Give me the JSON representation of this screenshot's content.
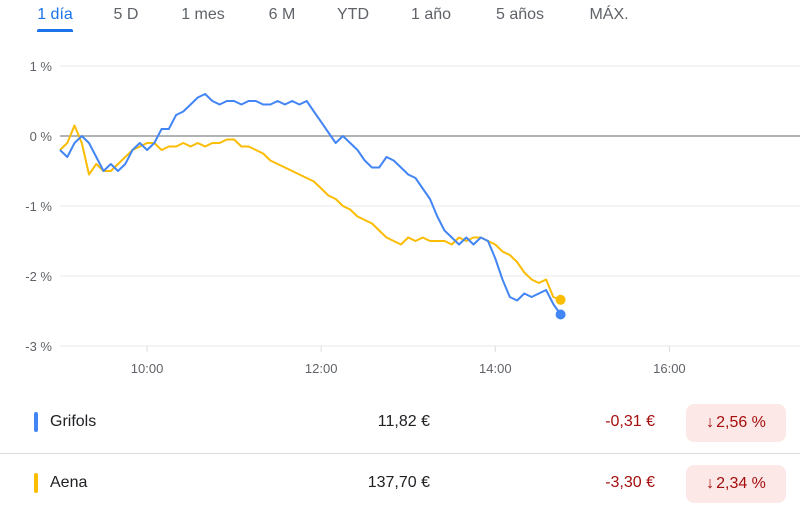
{
  "tabs": [
    {
      "label": "1 día",
      "active": true
    },
    {
      "label": "5 D",
      "active": false
    },
    {
      "label": "1 mes",
      "active": false
    },
    {
      "label": "6 M",
      "active": false
    },
    {
      "label": "YTD",
      "active": false
    },
    {
      "label": "1 año",
      "active": false
    },
    {
      "label": "5 años",
      "active": false
    },
    {
      "label": "MÁX.",
      "active": false
    }
  ],
  "colors": {
    "accent": "#1a73e8",
    "negative": "#a50e0e",
    "negative_bg": "#fce8e6",
    "grifols": "#4285f4",
    "aena": "#fbbc04"
  },
  "chart_data": {
    "type": "line",
    "x_axis": {
      "ticks": [
        "10:00",
        "12:00",
        "14:00",
        "16:00"
      ],
      "range": [
        "9:00",
        "17:30"
      ]
    },
    "y_axis": {
      "ticks": [
        "1 %",
        "0 %",
        "-1 %",
        "-2 %",
        "-3 %"
      ],
      "range": [
        -3,
        1
      ],
      "unit": "%"
    },
    "grid": true,
    "series": [
      {
        "name": "Grifols",
        "color": "#4285f4",
        "points": [
          [
            "9:00",
            -0.2
          ],
          [
            "9:05",
            -0.3
          ],
          [
            "9:10",
            -0.1
          ],
          [
            "9:15",
            0.0
          ],
          [
            "9:20",
            -0.1
          ],
          [
            "9:25",
            -0.3
          ],
          [
            "9:30",
            -0.5
          ],
          [
            "9:35",
            -0.4
          ],
          [
            "9:40",
            -0.5
          ],
          [
            "9:45",
            -0.4
          ],
          [
            "9:50",
            -0.2
          ],
          [
            "9:55",
            -0.1
          ],
          [
            "10:00",
            -0.2
          ],
          [
            "10:05",
            -0.1
          ],
          [
            "10:10",
            0.1
          ],
          [
            "10:15",
            0.1
          ],
          [
            "10:20",
            0.3
          ],
          [
            "10:25",
            0.35
          ],
          [
            "10:30",
            0.45
          ],
          [
            "10:35",
            0.55
          ],
          [
            "10:40",
            0.6
          ],
          [
            "10:45",
            0.5
          ],
          [
            "10:50",
            0.45
          ],
          [
            "10:55",
            0.5
          ],
          [
            "11:00",
            0.5
          ],
          [
            "11:05",
            0.45
          ],
          [
            "11:10",
            0.5
          ],
          [
            "11:15",
            0.5
          ],
          [
            "11:20",
            0.45
          ],
          [
            "11:25",
            0.45
          ],
          [
            "11:30",
            0.5
          ],
          [
            "11:35",
            0.45
          ],
          [
            "11:40",
            0.5
          ],
          [
            "11:45",
            0.45
          ],
          [
            "11:50",
            0.5
          ],
          [
            "11:55",
            0.35
          ],
          [
            "12:00",
            0.2
          ],
          [
            "12:05",
            0.05
          ],
          [
            "12:10",
            -0.1
          ],
          [
            "12:15",
            0.0
          ],
          [
            "12:20",
            -0.1
          ],
          [
            "12:25",
            -0.2
          ],
          [
            "12:30",
            -0.35
          ],
          [
            "12:35",
            -0.45
          ],
          [
            "12:40",
            -0.45
          ],
          [
            "12:45",
            -0.3
          ],
          [
            "12:50",
            -0.35
          ],
          [
            "12:55",
            -0.45
          ],
          [
            "13:00",
            -0.55
          ],
          [
            "13:05",
            -0.6
          ],
          [
            "13:10",
            -0.75
          ],
          [
            "13:15",
            -0.9
          ],
          [
            "13:20",
            -1.15
          ],
          [
            "13:25",
            -1.35
          ],
          [
            "13:30",
            -1.45
          ],
          [
            "13:35",
            -1.55
          ],
          [
            "13:40",
            -1.45
          ],
          [
            "13:45",
            -1.55
          ],
          [
            "13:50",
            -1.45
          ],
          [
            "13:55",
            -1.5
          ],
          [
            "14:00",
            -1.75
          ],
          [
            "14:05",
            -2.05
          ],
          [
            "14:10",
            -2.3
          ],
          [
            "14:15",
            -2.35
          ],
          [
            "14:20",
            -2.25
          ],
          [
            "14:25",
            -2.3
          ],
          [
            "14:30",
            -2.25
          ],
          [
            "14:35",
            -2.2
          ],
          [
            "14:40",
            -2.4
          ],
          [
            "14:45",
            -2.55
          ]
        ]
      },
      {
        "name": "Aena",
        "color": "#fbbc04",
        "points": [
          [
            "9:00",
            -0.2
          ],
          [
            "9:05",
            -0.1
          ],
          [
            "9:10",
            0.15
          ],
          [
            "9:15",
            -0.1
          ],
          [
            "9:20",
            -0.55
          ],
          [
            "9:25",
            -0.4
          ],
          [
            "9:30",
            -0.5
          ],
          [
            "9:35",
            -0.5
          ],
          [
            "9:40",
            -0.4
          ],
          [
            "9:45",
            -0.3
          ],
          [
            "9:50",
            -0.2
          ],
          [
            "9:55",
            -0.15
          ],
          [
            "10:00",
            -0.1
          ],
          [
            "10:05",
            -0.1
          ],
          [
            "10:10",
            -0.2
          ],
          [
            "10:15",
            -0.15
          ],
          [
            "10:20",
            -0.15
          ],
          [
            "10:25",
            -0.1
          ],
          [
            "10:30",
            -0.15
          ],
          [
            "10:35",
            -0.1
          ],
          [
            "10:40",
            -0.15
          ],
          [
            "10:45",
            -0.1
          ],
          [
            "10:50",
            -0.1
          ],
          [
            "10:55",
            -0.05
          ],
          [
            "11:00",
            -0.05
          ],
          [
            "11:05",
            -0.15
          ],
          [
            "11:10",
            -0.15
          ],
          [
            "11:15",
            -0.2
          ],
          [
            "11:20",
            -0.25
          ],
          [
            "11:25",
            -0.35
          ],
          [
            "11:30",
            -0.4
          ],
          [
            "11:35",
            -0.45
          ],
          [
            "11:40",
            -0.5
          ],
          [
            "11:45",
            -0.55
          ],
          [
            "11:50",
            -0.6
          ],
          [
            "11:55",
            -0.65
          ],
          [
            "12:00",
            -0.75
          ],
          [
            "12:05",
            -0.85
          ],
          [
            "12:10",
            -0.9
          ],
          [
            "12:15",
            -1.0
          ],
          [
            "12:20",
            -1.05
          ],
          [
            "12:25",
            -1.15
          ],
          [
            "12:30",
            -1.2
          ],
          [
            "12:35",
            -1.25
          ],
          [
            "12:40",
            -1.35
          ],
          [
            "12:45",
            -1.45
          ],
          [
            "12:50",
            -1.5
          ],
          [
            "12:55",
            -1.55
          ],
          [
            "13:00",
            -1.45
          ],
          [
            "13:05",
            -1.5
          ],
          [
            "13:10",
            -1.45
          ],
          [
            "13:15",
            -1.5
          ],
          [
            "13:20",
            -1.5
          ],
          [
            "13:25",
            -1.5
          ],
          [
            "13:30",
            -1.55
          ],
          [
            "13:35",
            -1.45
          ],
          [
            "13:40",
            -1.5
          ],
          [
            "13:45",
            -1.45
          ],
          [
            "13:50",
            -1.45
          ],
          [
            "13:55",
            -1.5
          ],
          [
            "14:00",
            -1.55
          ],
          [
            "14:05",
            -1.65
          ],
          [
            "14:10",
            -1.7
          ],
          [
            "14:15",
            -1.8
          ],
          [
            "14:20",
            -1.95
          ],
          [
            "14:25",
            -2.05
          ],
          [
            "14:30",
            -2.1
          ],
          [
            "14:35",
            -2.05
          ],
          [
            "14:40",
            -2.3
          ],
          [
            "14:45",
            -2.34
          ]
        ]
      }
    ]
  },
  "legend": [
    {
      "name": "Grifols",
      "price": "11,82 €",
      "change": "-0,31 €",
      "percent": "2,56 %",
      "arrow": "↓"
    },
    {
      "name": "Aena",
      "price": "137,70 €",
      "change": "-3,30 €",
      "percent": "2,34 %",
      "arrow": "↓"
    }
  ]
}
